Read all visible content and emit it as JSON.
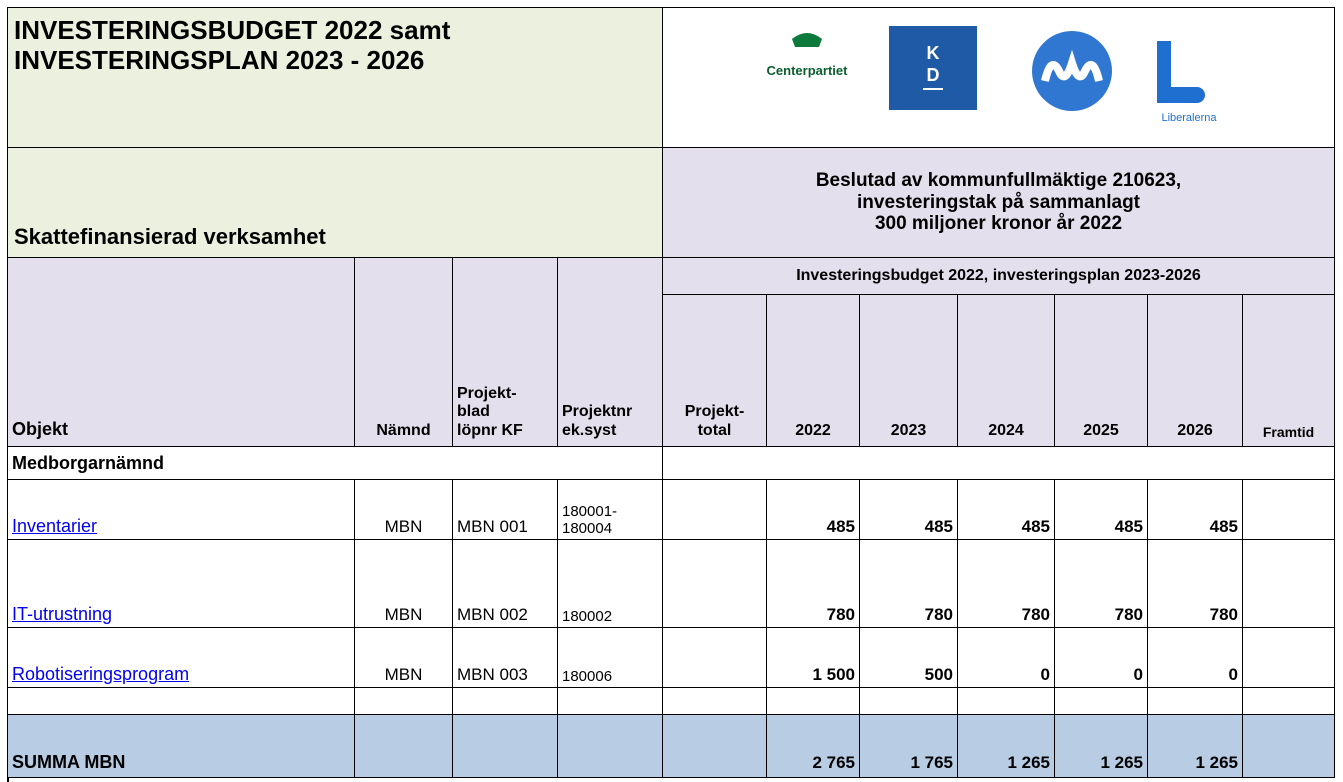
{
  "header": {
    "title": [
      "INVESTERINGSBUDGET 2022 samt",
      "INVESTERINGSPLAN 2023 - 2026"
    ],
    "section": "Skattefinansierad verksamhet",
    "decision": [
      "Beslutad av kommunfullmäktige 210623,",
      "investeringstak på sammanlagt",
      "300 miljoner kronor år 2022"
    ],
    "logos": {
      "centerpartiet": "Centerpartiet",
      "kd_k": "K",
      "kd_d": "D",
      "liberalerna": "Liberalerna"
    }
  },
  "table": {
    "group_header": "Investeringsbudget 2022, investeringsplan 2023-2026",
    "columns": [
      "Objekt",
      "Nämnd",
      "Projekt-\nblad\nlöpnr KF",
      "Projektnr\nek.syst",
      "Projekt-\ntotal",
      "2022",
      "2023",
      "2024",
      "2025",
      "2026",
      "Framtid"
    ],
    "section_row": "Medborgarnämnd",
    "rows": [
      {
        "objekt": "Inventarier",
        "namnd": "MBN",
        "blad": "MBN 001",
        "nr": "180001-\n180004",
        "years": [
          "485",
          "485",
          "485",
          "485",
          "485"
        ]
      },
      {
        "objekt": "IT-utrustning",
        "namnd": "MBN",
        "blad": "MBN 002",
        "nr": "180002",
        "years": [
          "780",
          "780",
          "780",
          "780",
          "780"
        ]
      },
      {
        "objekt": "Robotiseringsprogram",
        "namnd": "MBN",
        "blad": "MBN 003",
        "nr": "180006",
        "years": [
          "1 500",
          "500",
          "0",
          "0",
          "0"
        ]
      }
    ],
    "total": {
      "label": "SUMMA MBN",
      "years": [
        "2 765",
        "1 765",
        "1 265",
        "1 265",
        "1 265"
      ]
    }
  }
}
